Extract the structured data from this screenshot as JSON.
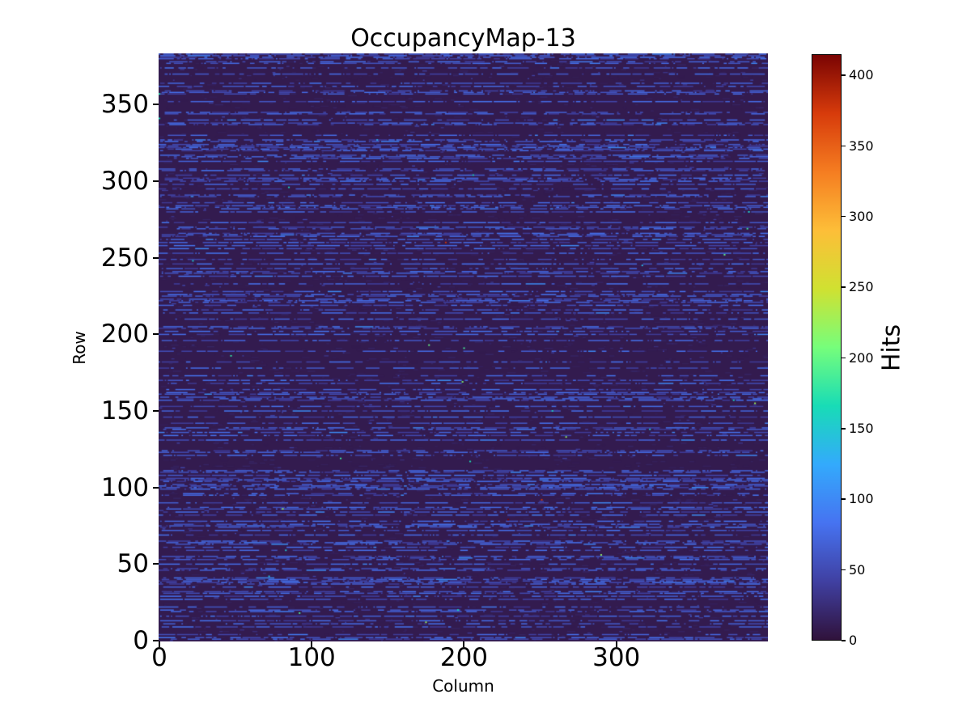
{
  "chart_data": {
    "type": "heatmap",
    "title": "OccupancyMap-13",
    "xlabel": "Column",
    "ylabel": "Row",
    "x_ticks": [
      0,
      100,
      200,
      300
    ],
    "y_ticks": [
      0,
      50,
      100,
      150,
      200,
      250,
      300,
      350
    ],
    "xlim": [
      0,
      400
    ],
    "ylim": [
      0,
      384
    ],
    "grid": false,
    "colormap": "turbo",
    "colorbar": {
      "label": "Hits",
      "ticks": [
        0,
        50,
        100,
        150,
        200,
        250,
        300,
        350,
        400
      ],
      "vmin": 0,
      "vmax": 415,
      "position": "right"
    },
    "turbo_stops": [
      "#30123b",
      "#4040a2",
      "#4673f1",
      "#33aafc",
      "#18dcb6",
      "#76fe7b",
      "#d0e131",
      "#fdbe38",
      "#f57d21",
      "#d73b0b",
      "#7a0403"
    ],
    "description": "400x384 pixel-detector occupancy map: near-zero dark-purple background with horizontal rows of short blue dash segments (roughly 35-85 hits) on ~42% of rows, sparse dim dashes elsewhere, and rare bright green/cyan and red outlier pixels up to the 415-hit maximum.",
    "pattern": {
      "rows": 384,
      "cols": 400,
      "seed": 13,
      "row_active_probability": 0.42,
      "background_value": 8,
      "noise_value_range": [
        8,
        25
      ],
      "dash_value_range": [
        35,
        85
      ],
      "dash_length_cols_max": 15,
      "gap_mean_cols": 5,
      "outliers": {
        "count": 26,
        "value_range": [
          130,
          230
        ]
      },
      "hot_outliers": {
        "count": 3,
        "value_range": [
          330,
          415
        ]
      },
      "edge_outliers": [
        {
          "col": 0,
          "row": 357,
          "value": 175
        },
        {
          "col": 0,
          "row": 341,
          "value": 165
        }
      ]
    }
  }
}
